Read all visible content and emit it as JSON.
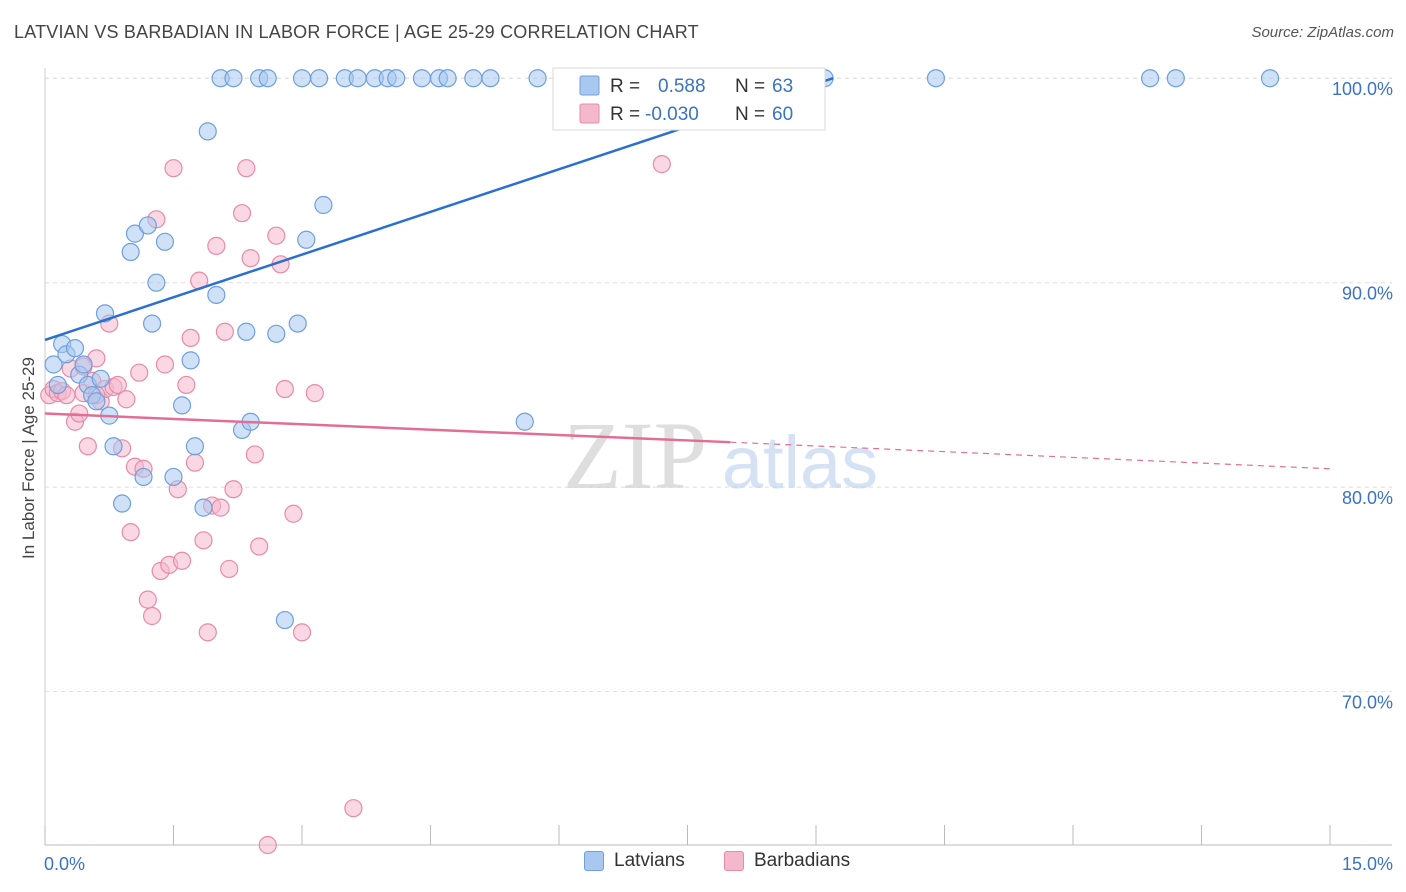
{
  "title": "LATVIAN VS BARBADIAN IN LABOR FORCE | AGE 25-29 CORRELATION CHART",
  "source": "Source: ZipAtlas.com",
  "watermark": {
    "zip": "ZIP",
    "atlas": "atlas"
  },
  "colors": {
    "latvians_fill": "#a8c8f0",
    "latvians_stroke": "#6f9fdc",
    "latvians_line": "#2b6fcf",
    "barbadians_fill": "#f4b8cc",
    "barbadians_stroke": "#e88aa8",
    "barbadians_line": "#e46d96",
    "value_text": "#3a72c4",
    "grid": "#dddddd"
  },
  "stats_legend": {
    "rows": [
      {
        "r_label": "R =",
        "r_value": "0.588",
        "n_label": "N =",
        "n_value": "63"
      },
      {
        "r_label": "R =",
        "r_value": "-0.030",
        "n_label": "N =",
        "n_value": "60"
      }
    ]
  },
  "chart_data": {
    "type": "scatter",
    "title": "LATVIAN VS BARBADIAN IN LABOR FORCE | AGE 25-29 CORRELATION CHART",
    "xlabel": "",
    "ylabel": "In Labor Force | Age 25-29",
    "xlim": [
      0,
      15
    ],
    "ylim": [
      62.5,
      100.5
    ],
    "x_tick_labels": [
      "0.0%",
      "15.0%"
    ],
    "y_ticks": [
      70,
      80,
      90,
      100
    ],
    "y_tick_labels": [
      "70.0%",
      "80.0%",
      "90.0%",
      "100.0%"
    ],
    "grid": "horizontal dashed",
    "legend_position": "bottom-center",
    "series": [
      {
        "name": "Latvians",
        "points": [
          [
            0.1,
            86.0
          ],
          [
            0.15,
            85.0
          ],
          [
            0.2,
            87.0
          ],
          [
            0.25,
            86.5
          ],
          [
            0.35,
            86.8
          ],
          [
            0.4,
            85.5
          ],
          [
            0.45,
            86.0
          ],
          [
            0.5,
            85.0
          ],
          [
            0.55,
            84.5
          ],
          [
            0.6,
            84.2
          ],
          [
            0.65,
            85.3
          ],
          [
            0.7,
            88.5
          ],
          [
            0.75,
            83.5
          ],
          [
            0.8,
            82.0
          ],
          [
            0.9,
            79.2
          ],
          [
            1.0,
            91.5
          ],
          [
            1.05,
            92.4
          ],
          [
            1.15,
            80.5
          ],
          [
            1.2,
            92.8
          ],
          [
            1.25,
            88.0
          ],
          [
            1.3,
            90.0
          ],
          [
            1.4,
            92.0
          ],
          [
            1.5,
            80.5
          ],
          [
            1.6,
            84.0
          ],
          [
            1.7,
            86.2
          ],
          [
            1.75,
            82.0
          ],
          [
            1.85,
            79.0
          ],
          [
            1.9,
            97.4
          ],
          [
            2.0,
            89.4
          ],
          [
            2.05,
            100.0
          ],
          [
            2.2,
            100.0
          ],
          [
            2.3,
            82.8
          ],
          [
            2.35,
            87.6
          ],
          [
            2.4,
            83.2
          ],
          [
            2.5,
            100.0
          ],
          [
            2.6,
            100.0
          ],
          [
            2.7,
            87.5
          ],
          [
            2.8,
            73.5
          ],
          [
            2.95,
            88.0
          ],
          [
            3.0,
            100.0
          ],
          [
            3.05,
            92.1
          ],
          [
            3.2,
            100.0
          ],
          [
            3.25,
            93.8
          ],
          [
            3.5,
            100.0
          ],
          [
            3.65,
            100.0
          ],
          [
            3.85,
            100.0
          ],
          [
            4.0,
            100.0
          ],
          [
            4.1,
            100.0
          ],
          [
            4.4,
            100.0
          ],
          [
            4.6,
            100.0
          ],
          [
            4.7,
            100.0
          ],
          [
            5.0,
            100.0
          ],
          [
            5.2,
            100.0
          ],
          [
            5.6,
            83.2
          ],
          [
            5.75,
            100.0
          ],
          [
            6.2,
            100.0
          ],
          [
            6.4,
            100.0
          ],
          [
            8.5,
            100.0
          ],
          [
            9.1,
            100.0
          ],
          [
            10.4,
            100.0
          ],
          [
            12.9,
            100.0
          ],
          [
            13.2,
            100.0
          ],
          [
            14.3,
            100.0
          ]
        ],
        "trend": {
          "x": [
            0,
            9.2
          ],
          "y": [
            87.2,
            100.0
          ],
          "style": "solid"
        }
      },
      {
        "name": "Barbadians",
        "points": [
          [
            0.05,
            84.5
          ],
          [
            0.1,
            84.8
          ],
          [
            0.15,
            84.6
          ],
          [
            0.2,
            84.7
          ],
          [
            0.25,
            84.5
          ],
          [
            0.3,
            85.8
          ],
          [
            0.35,
            83.2
          ],
          [
            0.4,
            83.6
          ],
          [
            0.45,
            84.6
          ],
          [
            0.5,
            82.0
          ],
          [
            0.55,
            85.2
          ],
          [
            0.6,
            86.3
          ],
          [
            0.65,
            84.2
          ],
          [
            0.7,
            84.8
          ],
          [
            0.75,
            88.0
          ],
          [
            0.8,
            84.9
          ],
          [
            0.85,
            85.0
          ],
          [
            0.9,
            81.9
          ],
          [
            0.95,
            84.3
          ],
          [
            1.0,
            77.8
          ],
          [
            1.05,
            81.0
          ],
          [
            1.1,
            85.6
          ],
          [
            1.15,
            80.9
          ],
          [
            1.2,
            74.5
          ],
          [
            1.25,
            73.7
          ],
          [
            1.3,
            93.1
          ],
          [
            1.35,
            75.9
          ],
          [
            1.4,
            86.0
          ],
          [
            1.45,
            76.2
          ],
          [
            1.5,
            95.6
          ],
          [
            1.55,
            79.9
          ],
          [
            1.6,
            76.4
          ],
          [
            1.65,
            85.0
          ],
          [
            1.7,
            87.3
          ],
          [
            1.75,
            81.2
          ],
          [
            1.8,
            90.1
          ],
          [
            1.85,
            77.4
          ],
          [
            1.9,
            72.9
          ],
          [
            1.95,
            79.1
          ],
          [
            2.0,
            91.8
          ],
          [
            2.05,
            79.0
          ],
          [
            2.1,
            87.6
          ],
          [
            2.15,
            76.0
          ],
          [
            2.2,
            79.9
          ],
          [
            2.3,
            93.4
          ],
          [
            2.35,
            95.6
          ],
          [
            2.4,
            91.2
          ],
          [
            2.45,
            81.6
          ],
          [
            2.5,
            77.1
          ],
          [
            2.6,
            62.5
          ],
          [
            2.7,
            92.3
          ],
          [
            2.75,
            90.9
          ],
          [
            2.8,
            84.8
          ],
          [
            2.9,
            78.7
          ],
          [
            3.0,
            72.9
          ],
          [
            3.15,
            84.6
          ],
          [
            3.6,
            64.3
          ],
          [
            7.2,
            95.8
          ],
          [
            0.45,
            85.9
          ],
          [
            0.6,
            84.5
          ]
        ],
        "trend": {
          "x": [
            0,
            8.0,
            15.0
          ],
          "y": [
            83.6,
            82.2,
            80.9
          ],
          "style": "solid-then-dashed"
        }
      }
    ]
  }
}
